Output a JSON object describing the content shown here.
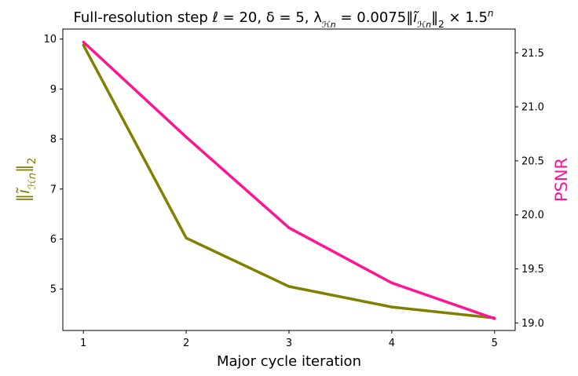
{
  "chart_data": {
    "type": "line",
    "title": {
      "text": "Full-resolution step ℓ = 20, δ = 5, λ",
      "lambda_sub": "ℋn",
      "equals": " = 0.0075‖",
      "norm_symbol": "ĩ",
      "norm_sub": "ℋn",
      "norm_close": "‖",
      "norm_index": "2",
      "times": " × 1.5",
      "power": "n"
    },
    "xlabel": "Major cycle iteration",
    "ylabel_left": {
      "open": "‖",
      "symbol": "ĩ",
      "sub": "ℋn",
      "close": "‖",
      "index": "2"
    },
    "ylabel_right": "PSNR",
    "x": [
      1,
      2,
      3,
      4,
      5
    ],
    "x_ticks": [
      "1",
      "2",
      "3",
      "4",
      "5"
    ],
    "xlim": [
      0.8,
      5.2
    ],
    "ylim_left": [
      4.17,
      10.2
    ],
    "ylim_right": [
      18.93,
      21.72
    ],
    "y_ticks_left": [
      5,
      6,
      7,
      8,
      9,
      10
    ],
    "y_ticks_right": [
      19.0,
      19.5,
      20.0,
      20.5,
      21.0,
      21.5
    ],
    "y_tick_labels_left": [
      "5",
      "6",
      "7",
      "8",
      "9",
      "10"
    ],
    "y_tick_labels_right": [
      "19.0",
      "19.5",
      "20.0",
      "20.5",
      "21.0",
      "21.5"
    ],
    "grid": false,
    "series": [
      {
        "axis": "left",
        "color": "#808000",
        "values": [
          9.88,
          6.02,
          5.05,
          4.64,
          4.42
        ]
      },
      {
        "axis": "right",
        "color": "#ff1493",
        "values": [
          21.6,
          20.72,
          19.88,
          19.37,
          19.04
        ]
      }
    ]
  }
}
